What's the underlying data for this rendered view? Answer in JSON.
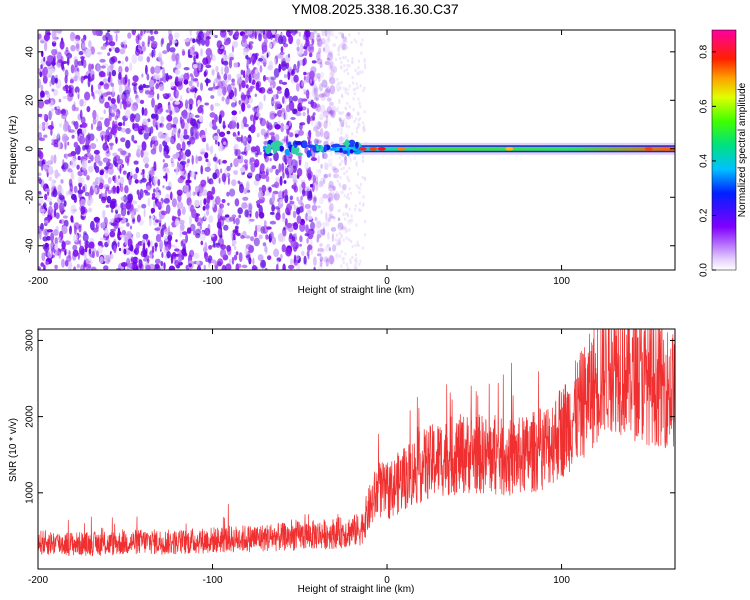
{
  "title": "YM08.2025.338.16.30.C37",
  "colors": {
    "snr_line": "#f03030",
    "frame": "#000000"
  },
  "chart_data": [
    {
      "type": "heatmap",
      "xlabel": "Height of straight line (km)",
      "ylabel": "Frequency (Hz)",
      "xlim": [
        -200,
        165
      ],
      "ylim": [
        -50,
        49
      ],
      "x_ticks": [
        -200,
        -100,
        0,
        100
      ],
      "y_ticks": [
        -40,
        -20,
        0,
        20,
        40
      ],
      "colorbar": {
        "label": "Normalized spectral amplitude",
        "range": [
          0.0,
          0.88
        ],
        "ticks": [
          "0.0",
          "0.2",
          "0.4",
          "0.6",
          "0.8"
        ],
        "colormap": "rainbow (white-violet-blue-cyan-green-yellow-red-magenta)"
      },
      "description_points": [
        {
          "x": -200,
          "zone": "broadband noise",
          "level": 0.1
        },
        {
          "x": -30,
          "zone": "noise cutoff",
          "level": 0.05
        },
        {
          "x": -10,
          "zone": "narrowband peak near 0 Hz",
          "level": 0.85
        },
        {
          "x": 50,
          "zone": "narrowband band at 0 Hz",
          "level": 0.45
        },
        {
          "x": 165,
          "zone": "narrowband band at 0 Hz",
          "level": 0.55
        }
      ]
    },
    {
      "type": "line",
      "xlabel": "Height of straight line (km)",
      "ylabel": "SNR (10 * v/v)",
      "xlim": [
        -200,
        165
      ],
      "ylim": [
        0,
        3150
      ],
      "x_ticks": [
        -200,
        -100,
        0,
        100
      ],
      "y_ticks": [
        1000,
        2000,
        3000
      ],
      "series": [
        {
          "x": [
            -200,
            -180,
            -160,
            -140,
            -120,
            -100,
            -80,
            -60,
            -40,
            -25,
            -15,
            -10,
            -5,
            0,
            5,
            10,
            20,
            30,
            40,
            50,
            60,
            70,
            80,
            90,
            100,
            110,
            120,
            125,
            130,
            140,
            150,
            160,
            165
          ],
          "y": [
            350,
            330,
            330,
            360,
            350,
            380,
            400,
            420,
            450,
            480,
            520,
            800,
            1050,
            1000,
            1100,
            1200,
            1350,
            1450,
            1500,
            1520,
            1480,
            1450,
            1500,
            1600,
            1800,
            2100,
            2450,
            2650,
            2700,
            2550,
            2450,
            2400,
            2350
          ]
        }
      ]
    }
  ]
}
